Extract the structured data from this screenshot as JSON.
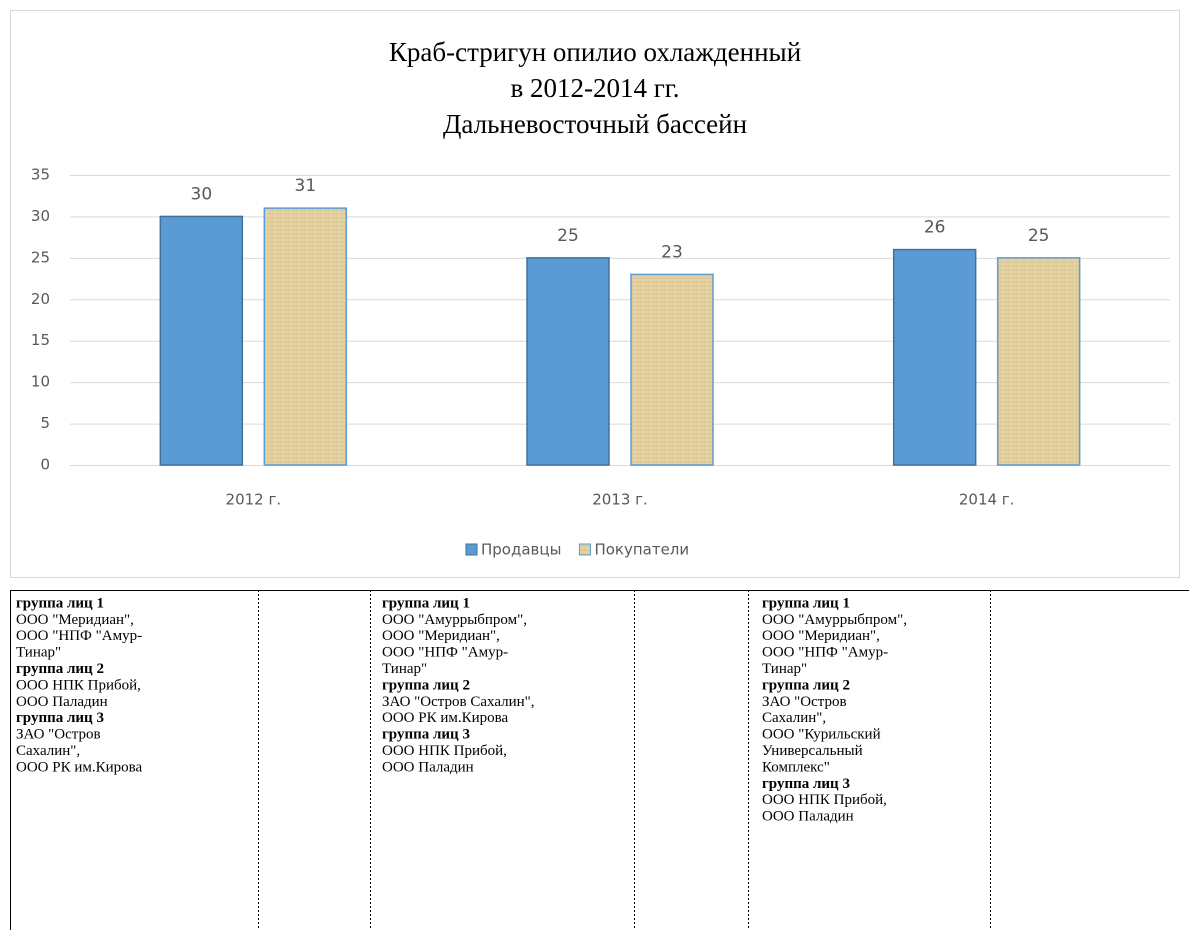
{
  "chart_data": {
    "type": "bar",
    "title": [
      "Краб-стригун опилио охлажденный",
      "в 2012-2014 гг.",
      "Дальневосточный бассейн"
    ],
    "categories": [
      "2012 г.",
      "2013 г.",
      "2014 г."
    ],
    "series": [
      {
        "name": "Продавцы",
        "color": "#5b9bd5",
        "values": [
          30,
          25,
          26
        ]
      },
      {
        "name": "Покупатели",
        "color": "#e4d1a0",
        "values": [
          31,
          23,
          25
        ]
      }
    ],
    "ylim": [
      0,
      35
    ],
    "yticks": [
      0,
      5,
      10,
      15,
      20,
      25,
      30,
      35
    ],
    "grid": true,
    "legend": "bottom"
  },
  "table": {
    "columns": [
      [
        {
          "text": "группа лиц 1",
          "bold": true
        },
        {
          "text": "ООО \"Меридиан\","
        },
        {
          "text": "ООО \"НПФ \"Амур-"
        },
        {
          "text": "Тинар\""
        },
        {
          "text": "группа лиц 2",
          "bold": true
        },
        {
          "text": "ООО НПК Прибой,"
        },
        {
          "text": "ООО Паладин"
        },
        {
          "text": "группа лиц 3",
          "bold": true
        },
        {
          "text": "ЗАО \"Остров"
        },
        {
          "text": "Сахалин\","
        },
        {
          "text": "ООО РК им.Кирова"
        }
      ],
      [
        {
          "text": "группа лиц 1",
          "bold": true
        },
        {
          "text": "ООО \"Амуррыбпром\","
        },
        {
          "text": "ООО \"Меридиан\","
        },
        {
          "text": "ООО \"НПФ \"Амур-"
        },
        {
          "text": "Тинар\""
        },
        {
          "text": "группа лиц 2",
          "bold": true
        },
        {
          "text": "ЗАО \"Остров Сахалин\","
        },
        {
          "text": "ООО РК им.Кирова"
        },
        {
          "text": "группа лиц 3",
          "bold": true
        },
        {
          "text": "ООО НПК Прибой,"
        },
        {
          "text": "ООО Паладин"
        }
      ],
      [
        {
          "text": "группа лиц 1",
          "bold": true
        },
        {
          "text": "ООО \"Амуррыбпром\","
        },
        {
          "text": "ООО \"Меридиан\","
        },
        {
          "text": "ООО \"НПФ \"Амур-"
        },
        {
          "text": "Тинар\""
        },
        {
          "text": "группа лиц 2",
          "bold": true
        },
        {
          "text": "ЗАО \"Остров"
        },
        {
          "text": "Сахалин\","
        },
        {
          "text": "ООО \"Курильский"
        },
        {
          "text": "Универсальный"
        },
        {
          "text": "Комплекс\""
        },
        {
          "text": "группа лиц 3",
          "bold": true
        },
        {
          "text": "ООО НПК Прибой,"
        },
        {
          "text": "ООО Паладин"
        }
      ]
    ]
  }
}
